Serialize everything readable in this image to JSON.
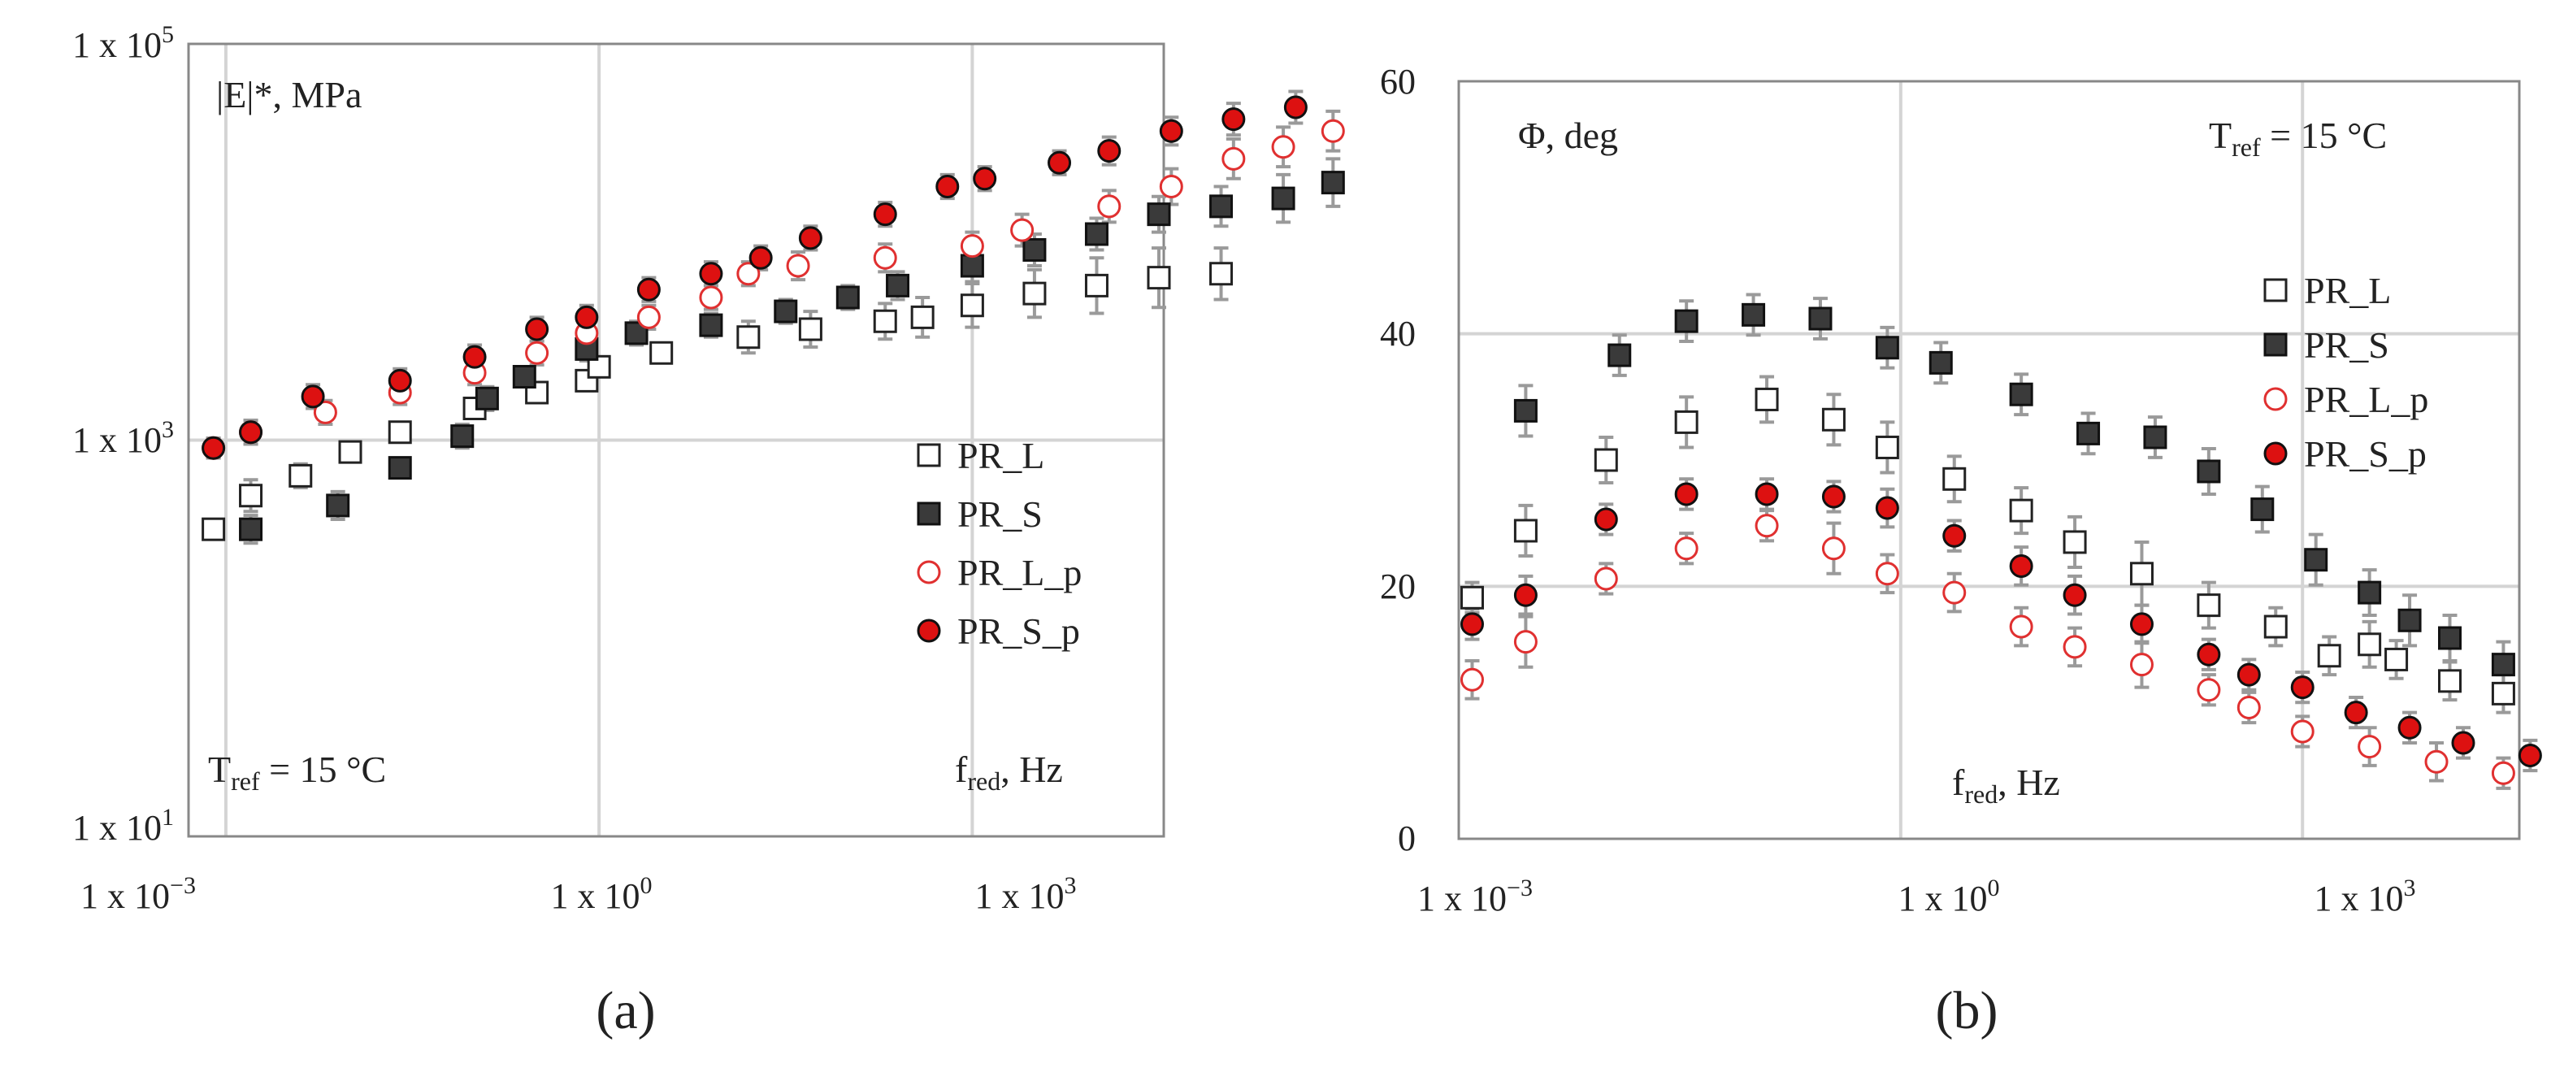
{
  "panels": [
    {
      "id": "a",
      "panel_label": "(a)",
      "quantity_label": "|E|*, MPa",
      "temp_label": {
        "main": "T",
        "sub": "ref",
        "rest": " = 15 °C"
      },
      "xlabel": {
        "main": "f",
        "sub": "red",
        "rest": ", Hz"
      },
      "x_ticks": [
        {
          "base": "1 x 10",
          "exp": "−3"
        },
        {
          "base": "1 x 10",
          "exp": "0"
        },
        {
          "base": "1 x 10",
          "exp": "3"
        }
      ],
      "y_ticks": [
        {
          "base": "1 x 10",
          "exp": "1"
        },
        {
          "base": "1 x 10",
          "exp": "3"
        },
        {
          "base": "1 x 10",
          "exp": "5"
        }
      ]
    },
    {
      "id": "b",
      "panel_label": "(b)",
      "quantity_label": "Φ, deg",
      "temp_label": {
        "main": "T",
        "sub": "ref",
        "rest": " = 15 °C"
      },
      "xlabel": {
        "main": "f",
        "sub": "red",
        "rest": ", Hz"
      },
      "x_ticks": [
        {
          "base": "1 x 10",
          "exp": "−3"
        },
        {
          "base": "1 x 10",
          "exp": "0"
        },
        {
          "base": "1 x 10",
          "exp": "3"
        }
      ],
      "y_ticks": [
        "0",
        "20",
        "40",
        "60"
      ]
    }
  ],
  "chart_data": [
    {
      "type": "scatter",
      "title": "(a)",
      "xlabel": "fred, Hz",
      "ylabel": "|E|*, MPa",
      "x_scale": "log",
      "y_scale": "log",
      "xlim_log10": [
        -3.3,
        4.5
      ],
      "ylim_log10": [
        1,
        5
      ],
      "legend_position": "right",
      "series": [
        {
          "name": "PR_L",
          "marker": "square-open",
          "color": "#222222",
          "points": [
            [
              -3.1,
              2.55,
              0.05
            ],
            [
              -2.8,
              2.72,
              0.08
            ],
            [
              -2.4,
              2.82,
              0.06
            ],
            [
              -2.0,
              2.94,
              0.05
            ],
            [
              -1.6,
              3.04,
              0.05
            ],
            [
              -1.0,
              3.16,
              0.05
            ],
            [
              -0.5,
              3.24,
              0.05
            ],
            [
              -0.1,
              3.3,
              0.05
            ],
            [
              0.0,
              3.37,
              0.05
            ],
            [
              0.5,
              3.44,
              0.05
            ],
            [
              1.2,
              3.52,
              0.08
            ],
            [
              1.7,
              3.56,
              0.09
            ],
            [
              2.3,
              3.6,
              0.09
            ],
            [
              2.6,
              3.62,
              0.1
            ],
            [
              3.0,
              3.68,
              0.11
            ],
            [
              3.5,
              3.74,
              0.12
            ],
            [
              4.0,
              3.78,
              0.14
            ],
            [
              4.5,
              3.82,
              0.15
            ],
            [
              5.0,
              3.84,
              0.13
            ]
          ]
        },
        {
          "name": "PR_S",
          "marker": "square-filled",
          "color": "#3a3a3a",
          "points": [
            [
              -2.8,
              2.55,
              0.07
            ],
            [
              -2.1,
              2.67,
              0.07
            ],
            [
              -1.6,
              2.86,
              0.05
            ],
            [
              -1.1,
              3.02,
              0.06
            ],
            [
              -0.9,
              3.21,
              0.06
            ],
            [
              -0.6,
              3.32,
              0.05
            ],
            [
              -0.1,
              3.46,
              0.06
            ],
            [
              0.3,
              3.54,
              0.06
            ],
            [
              0.9,
              3.58,
              0.06
            ],
            [
              1.5,
              3.65,
              0.06
            ],
            [
              2.0,
              3.72,
              0.06
            ],
            [
              2.4,
              3.78,
              0.07
            ],
            [
              3.0,
              3.88,
              0.08
            ],
            [
              3.5,
              3.96,
              0.08
            ],
            [
              4.0,
              4.04,
              0.08
            ],
            [
              4.5,
              4.14,
              0.09
            ],
            [
              5.0,
              4.18,
              0.1
            ],
            [
              5.5,
              4.22,
              0.12
            ],
            [
              5.9,
              4.3,
              0.12
            ]
          ]
        },
        {
          "name": "PR_L_p",
          "marker": "circle-open",
          "color": "#e03030",
          "points": [
            [
              -3.1,
              2.96,
              0.05
            ],
            [
              -2.8,
              3.04,
              0.06
            ],
            [
              -2.2,
              3.14,
              0.06
            ],
            [
              -1.6,
              3.24,
              0.06
            ],
            [
              -1.0,
              3.34,
              0.06
            ],
            [
              -0.5,
              3.44,
              0.06
            ],
            [
              -0.1,
              3.54,
              0.06
            ],
            [
              0.4,
              3.62,
              0.06
            ],
            [
              0.9,
              3.72,
              0.06
            ],
            [
              1.2,
              3.84,
              0.06
            ],
            [
              1.6,
              3.88,
              0.07
            ],
            [
              2.3,
              3.92,
              0.07
            ],
            [
              3.0,
              3.98,
              0.07
            ],
            [
              3.4,
              4.06,
              0.08
            ],
            [
              4.1,
              4.18,
              0.08
            ],
            [
              4.6,
              4.28,
              0.09
            ],
            [
              5.1,
              4.42,
              0.1
            ],
            [
              5.5,
              4.48,
              0.1
            ],
            [
              5.9,
              4.56,
              0.1
            ]
          ]
        },
        {
          "name": "PR_S_p",
          "marker": "circle-filled",
          "color": "#dd1111",
          "points": [
            [
              -3.1,
              2.96,
              0.05
            ],
            [
              -2.8,
              3.04,
              0.06
            ],
            [
              -2.3,
              3.22,
              0.06
            ],
            [
              -1.6,
              3.3,
              0.06
            ],
            [
              -1.0,
              3.42,
              0.06
            ],
            [
              -0.5,
              3.56,
              0.06
            ],
            [
              -0.1,
              3.62,
              0.06
            ],
            [
              0.4,
              3.76,
              0.06
            ],
            [
              0.9,
              3.84,
              0.06
            ],
            [
              1.3,
              3.92,
              0.06
            ],
            [
              1.7,
              4.02,
              0.06
            ],
            [
              2.3,
              4.14,
              0.06
            ],
            [
              2.8,
              4.28,
              0.06
            ],
            [
              3.1,
              4.32,
              0.06
            ],
            [
              3.7,
              4.4,
              0.06
            ],
            [
              4.1,
              4.46,
              0.07
            ],
            [
              4.6,
              4.56,
              0.07
            ],
            [
              5.1,
              4.62,
              0.08
            ],
            [
              5.6,
              4.68,
              0.08
            ]
          ]
        }
      ]
    },
    {
      "type": "scatter",
      "title": "(b)",
      "xlabel": "fred, Hz",
      "ylabel": "Φ, deg",
      "x_scale": "log",
      "y_scale": "linear",
      "xlim_log10": [
        -3.3,
        4.5
      ],
      "ylim": [
        0,
        60
      ],
      "legend_position": "right",
      "series": [
        {
          "name": "PR_L",
          "marker": "square-open",
          "color": "#222222",
          "points": [
            [
              -3.2,
              19.1,
              1.2
            ],
            [
              -2.8,
              24.4,
              2.0
            ],
            [
              -2.2,
              30.0,
              1.8
            ],
            [
              -1.6,
              33.0,
              2.0
            ],
            [
              -1.0,
              34.8,
              1.8
            ],
            [
              -0.5,
              33.2,
              2.0
            ],
            [
              -0.1,
              31.0,
              2.0
            ],
            [
              0.4,
              28.5,
              1.8
            ],
            [
              0.9,
              26.0,
              1.8
            ],
            [
              1.3,
              23.5,
              2.0
            ],
            [
              1.8,
              21.0,
              2.5
            ],
            [
              2.3,
              18.5,
              1.8
            ],
            [
              2.8,
              16.8,
              1.5
            ],
            [
              3.2,
              14.5,
              1.5
            ],
            [
              3.5,
              15.4,
              1.8
            ],
            [
              3.7,
              14.2,
              1.5
            ],
            [
              4.1,
              12.5,
              1.5
            ],
            [
              4.5,
              11.5,
              1.5
            ],
            [
              5.0,
              10.0,
              1.8
            ]
          ]
        },
        {
          "name": "PR_S",
          "marker": "square-filled",
          "color": "#3a3a3a",
          "points": [
            [
              -2.8,
              33.9,
              2.0
            ],
            [
              -2.1,
              38.3,
              1.6
            ],
            [
              -1.6,
              41.0,
              1.6
            ],
            [
              -1.1,
              41.5,
              1.6
            ],
            [
              -0.6,
              41.2,
              1.6
            ],
            [
              -0.1,
              38.9,
              1.6
            ],
            [
              0.3,
              37.7,
              1.6
            ],
            [
              0.9,
              35.2,
              1.6
            ],
            [
              1.4,
              32.1,
              1.6
            ],
            [
              1.9,
              31.8,
              1.6
            ],
            [
              2.3,
              29.1,
              1.8
            ],
            [
              2.7,
              26.1,
              1.8
            ],
            [
              3.1,
              22.1,
              2.0
            ],
            [
              3.5,
              19.5,
              1.8
            ],
            [
              3.8,
              17.3,
              2.0
            ],
            [
              4.1,
              15.9,
              1.8
            ],
            [
              4.5,
              13.8,
              1.8
            ],
            [
              5.0,
              12.2,
              1.6
            ],
            [
              5.5,
              8.5,
              1.4
            ]
          ]
        },
        {
          "name": "PR_L_p",
          "marker": "circle-open",
          "color": "#e03030",
          "points": [
            [
              -3.2,
              12.6,
              1.5
            ],
            [
              -2.8,
              15.6,
              2.0
            ],
            [
              -2.2,
              20.6,
              1.2
            ],
            [
              -1.6,
              23.0,
              1.2
            ],
            [
              -1.0,
              24.8,
              1.2
            ],
            [
              -0.5,
              23.0,
              2.0
            ],
            [
              -0.1,
              21.0,
              1.5
            ],
            [
              0.4,
              19.5,
              1.5
            ],
            [
              0.9,
              16.8,
              1.5
            ],
            [
              1.3,
              15.2,
              1.5
            ],
            [
              1.8,
              13.8,
              1.8
            ],
            [
              2.3,
              11.8,
              1.2
            ],
            [
              2.6,
              10.4,
              1.2
            ],
            [
              3.0,
              8.5,
              1.2
            ],
            [
              3.5,
              7.3,
              1.5
            ],
            [
              4.0,
              6.1,
              1.5
            ],
            [
              4.5,
              5.2,
              1.2
            ],
            [
              5.0,
              4.1,
              1.2
            ],
            [
              5.5,
              4.8,
              1.2
            ]
          ]
        },
        {
          "name": "PR_S_p",
          "marker": "circle-filled",
          "color": "#dd1111",
          "points": [
            [
              -3.2,
              17.0,
              1.2
            ],
            [
              -2.8,
              19.3,
              1.5
            ],
            [
              -2.2,
              25.3,
              1.2
            ],
            [
              -1.6,
              27.3,
              1.2
            ],
            [
              -1.0,
              27.3,
              1.2
            ],
            [
              -0.5,
              27.1,
              1.2
            ],
            [
              -0.1,
              26.2,
              1.5
            ],
            [
              0.4,
              24.0,
              1.2
            ],
            [
              0.9,
              21.6,
              1.5
            ],
            [
              1.3,
              19.3,
              1.5
            ],
            [
              1.8,
              17.0,
              1.5
            ],
            [
              2.3,
              14.6,
              1.2
            ],
            [
              2.6,
              13.0,
              1.2
            ],
            [
              3.0,
              12.0,
              1.2
            ],
            [
              3.4,
              10.0,
              1.2
            ],
            [
              3.8,
              8.8,
              1.2
            ],
            [
              4.2,
              7.6,
              1.2
            ],
            [
              4.7,
              6.6,
              1.2
            ],
            [
              5.3,
              5.6,
              1.2
            ]
          ]
        }
      ]
    }
  ]
}
